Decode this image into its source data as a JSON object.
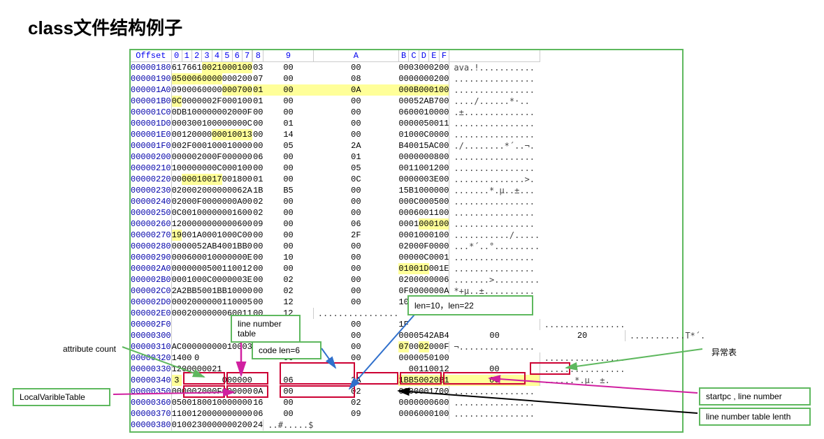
{
  "title": "class文件结构例子",
  "header_offset": "Offset",
  "hex_cols": [
    "0",
    "1",
    "2",
    "3",
    "4",
    "5",
    "6",
    "7",
    "8",
    "9",
    "A",
    "B",
    "C",
    "D",
    "E",
    "F"
  ],
  "rows": [
    {
      "o": "00000180",
      "h": [
        "61",
        "76",
        "61",
        "00",
        "21",
        "00",
        "01",
        "00",
        "",
        "03",
        "00",
        "00",
        "00",
        "03",
        "00",
        "02",
        "00"
      ],
      "hl": [
        3,
        4,
        5,
        6,
        7
      ],
      "a": "ava.!..........."
    },
    {
      "o": "00000190",
      "h": [
        "05",
        "00",
        "06",
        "00",
        "00",
        "00",
        "02",
        "00",
        "",
        "07",
        "00",
        "08",
        "00",
        "00",
        "00",
        "02",
        "00"
      ],
      "hl": [
        0,
        1,
        2,
        3,
        4
      ],
      "a": "................"
    },
    {
      "o": "000001A0",
      "h": [
        "09",
        "00",
        "06",
        "00",
        "00",
        "00",
        "07",
        "00",
        "",
        "01",
        "00",
        "0A",
        "00",
        "0B",
        "00",
        "01",
        "00"
      ],
      "hl": [
        5,
        6,
        7,
        9,
        10,
        11,
        12,
        13,
        14,
        15,
        16
      ],
      "a": "................"
    },
    {
      "o": "000001B0",
      "h": [
        "0C",
        "00",
        "00",
        "00",
        "2F",
        "00",
        "01",
        "00",
        "",
        "01",
        "00",
        "00",
        "00",
        "05",
        "2A",
        "B7",
        "00"
      ],
      "hl": [
        0
      ],
      "a": "..../......*·.."
    },
    {
      "o": "000001C0",
      "h": [
        "0D",
        "B1",
        "00",
        "00",
        "00",
        "02",
        "00",
        "0F",
        "",
        "00",
        "00",
        "00",
        "06",
        "00",
        "01",
        "00",
        "00"
      ],
      "hl": [],
      "a": ".±.............."
    },
    {
      "o": "000001D0",
      "h": [
        "00",
        "03",
        "00",
        "10",
        "00",
        "00",
        "00",
        "0C",
        "",
        "00",
        "01",
        "00",
        "00",
        "00",
        "05",
        "00",
        "11"
      ],
      "hl": [],
      "a": "................"
    },
    {
      "o": "000001E0",
      "h": [
        "00",
        "12",
        "00",
        "00",
        "00",
        "01",
        "00",
        "13",
        "",
        "00",
        "14",
        "00",
        "01",
        "00",
        "0C",
        "00",
        "00"
      ],
      "hl": [
        4,
        5,
        6,
        7
      ],
      "a": "................"
    },
    {
      "o": "000001F0",
      "h": [
        "00",
        "2F",
        "00",
        "01",
        "00",
        "01",
        "00",
        "00",
        "",
        "00",
        "05",
        "2A",
        "B4",
        "00",
        "15",
        "AC",
        "00"
      ],
      "hl": [],
      "a": "./........*´..¬."
    },
    {
      "o": "00000200",
      "h": [
        "00",
        "00",
        "02",
        "00",
        "0F",
        "00",
        "00",
        "00",
        "",
        "06",
        "00",
        "01",
        "00",
        "00",
        "00",
        "08",
        "00"
      ],
      "hl": [],
      "a": "................"
    },
    {
      "o": "00000210",
      "h": [
        "10",
        "00",
        "00",
        "00",
        "0C",
        "00",
        "01",
        "00",
        "",
        "00",
        "00",
        "05",
        "00",
        "11",
        "00",
        "12",
        "00"
      ],
      "hl": [],
      "a": "................"
    },
    {
      "o": "00000220",
      "h": [
        "00",
        "00",
        "01",
        "00",
        "17",
        "00",
        "18",
        "00",
        "",
        "01",
        "00",
        "0C",
        "00",
        "00",
        "00",
        "3E",
        "00"
      ],
      "hl": [
        1,
        2,
        3,
        4
      ],
      "a": "..............>."
    },
    {
      "o": "00000230",
      "h": [
        "02",
        "00",
        "02",
        "00",
        "00",
        "00",
        "06",
        "2A",
        "",
        "1B",
        "B5",
        "00",
        "15",
        "B1",
        "00",
        "00",
        "00"
      ],
      "hl": [],
      "a": ".......*.µ..±..."
    },
    {
      "o": "00000240",
      "h": [
        "02",
        "00",
        "0F",
        "00",
        "00",
        "00",
        "0A",
        "00",
        "",
        "02",
        "00",
        "00",
        "00",
        "0C",
        "00",
        "05",
        "00"
      ],
      "hl": [],
      "a": "................"
    },
    {
      "o": "00000250",
      "h": [
        "0C",
        "00",
        "10",
        "00",
        "00",
        "00",
        "16",
        "00",
        "",
        "02",
        "00",
        "00",
        "00",
        "06",
        "00",
        "11",
        "00"
      ],
      "hl": [],
      "a": "................"
    },
    {
      "o": "00000260",
      "h": [
        "12",
        "00",
        "00",
        "00",
        "00",
        "00",
        "06",
        "00",
        "",
        "09",
        "00",
        "06",
        "00",
        "01",
        "00",
        "01",
        "00"
      ],
      "hl": [
        14,
        15,
        16
      ],
      "a": "................"
    },
    {
      "o": "00000270",
      "h": [
        "19",
        "00",
        "1A",
        "00",
        "01",
        "00",
        "0C",
        "00",
        "",
        "00",
        "00",
        "2F",
        "00",
        "01",
        "00",
        "01",
        "00"
      ],
      "hl": [
        0
      ],
      "a": ".........../....."
    },
    {
      "o": "00000280",
      "h": [
        "00",
        "00",
        "05",
        "2A",
        "B4",
        "00",
        "1B",
        "B0",
        "",
        "00",
        "00",
        "00",
        "02",
        "00",
        "0F",
        "00",
        "00"
      ],
      "hl": [],
      "a": "...*´..°........."
    },
    {
      "o": "00000290",
      "h": [
        "00",
        "06",
        "00",
        "01",
        "00",
        "00",
        "00",
        "0E",
        "",
        "00",
        "10",
        "00",
        "00",
        "00",
        "0C",
        "00",
        "01"
      ],
      "hl": [],
      "a": "................"
    },
    {
      "o": "000002A0",
      "h": [
        "00",
        "00",
        "00",
        "05",
        "00",
        "11",
        "00",
        "12",
        "",
        "00",
        "00",
        "00",
        "01",
        "00",
        "1D",
        "00",
        "1E"
      ],
      "hl": [
        12,
        13,
        14
      ],
      "a": "................"
    },
    {
      "o": "000002B0",
      "h": [
        "00",
        "01",
        "00",
        "0C",
        "00",
        "00",
        "00",
        "3E",
        "",
        "00",
        "02",
        "00",
        "02",
        "00",
        "00",
        "00",
        "06"
      ],
      "hl": [],
      "a": ".......>........."
    },
    {
      "o": "000002C0",
      "h": [
        "2A",
        "2B",
        "B5",
        "00",
        "1B",
        "B1",
        "00",
        "00",
        "",
        "00",
        "02",
        "00",
        "0F",
        "00",
        "00",
        "00",
        "0A"
      ],
      "hl": [],
      "a": "*+µ..±.........."
    },
    {
      "o": "000002D0",
      "h": [
        "00",
        "02",
        "00",
        "00",
        "00",
        "11",
        "00",
        "05",
        "",
        "00",
        "12",
        "00",
        "10",
        "00",
        "00",
        "00",
        "16"
      ],
      "hl": [],
      "a": "................"
    },
    {
      "o": "000002E0",
      "h": [
        "00",
        "02",
        "00",
        "00",
        "00",
        "06",
        "00",
        "11",
        "",
        "00",
        "12",
        "",
        "",
        "",
        "",
        "",
        ""
      ],
      "hl": [],
      "a": "................"
    },
    {
      "o": "000002F0",
      "h": [
        "",
        "",
        "",
        "",
        "",
        "",
        "",
        "",
        "",
        "00",
        "00",
        "1F",
        "",
        "",
        "",
        "",
        " "
      ],
      "hl": [],
      "a": "................"
    },
    {
      "o": "00000300",
      "h": [
        "",
        "",
        "",
        "",
        "",
        "",
        "",
        "00",
        "",
        "0C",
        "00",
        "00",
        "00",
        "54",
        "2A",
        "B4",
        "00",
        "20"
      ],
      "hl": [],
      "a": "...........T*´. "
    },
    {
      "o": "00000310",
      "h": [
        "AC",
        "00",
        "00",
        "00",
        "00",
        "01",
        "00",
        "03",
        "",
        "00",
        "05",
        "00",
        "07",
        "00",
        "02",
        "00",
        "0F"
      ],
      "hl": [
        9,
        10,
        12,
        14
      ],
      "a": "¬..............."
    },
    {
      "o": "00000320",
      "h": [
        "14",
        "00",
        "0",
        "",
        "",
        "",
        "",
        "",
        "",
        "06",
        "00",
        "00",
        "00",
        "05",
        "01",
        "00"
      ],
      "hl": [],
      "a": "................"
    },
    {
      "o": "00000330",
      "h": [
        "12",
        "00",
        "00",
        "00",
        "21",
        "",
        "",
        "",
        "",
        "",
        "",
        "",
        "00",
        "11",
        "00",
        "12",
        "00"
      ],
      "hl": [],
      "a": "................"
    },
    {
      "o": "00000340",
      "h": [
        "3",
        "",
        "",
        "",
        "",
        "00",
        "00",
        "00",
        "",
        "06",
        "2A",
        "1B",
        "B5",
        "00",
        "20",
        "B1",
        "00"
      ],
      "hl": [
        0,
        11,
        12,
        13,
        14,
        15,
        16
      ],
      "a": "......*.µ. ±."
    },
    {
      "o": "00000350",
      "h": [
        "00",
        "00",
        "02",
        "00",
        "0F",
        "00",
        "00",
        "00",
        "",
        "0A",
        "00",
        "02",
        "00",
        "00",
        "00",
        "17",
        "00"
      ],
      "hl": [],
      "a": "................"
    },
    {
      "o": "00000360",
      "h": [
        "05",
        "00",
        "18",
        "00",
        "10",
        "00",
        "00",
        "00",
        "",
        "16",
        "00",
        "02",
        "00",
        "00",
        "00",
        "06",
        "00"
      ],
      "hl": [],
      "a": "................"
    },
    {
      "o": "00000370",
      "h": [
        "11",
        "00",
        "12",
        "00",
        "00",
        "00",
        "00",
        "00",
        "",
        "06",
        "00",
        "09",
        "00",
        "06",
        "00",
        "01",
        "00"
      ],
      "hl": [],
      "a": "................"
    },
    {
      "o": "00000380",
      "h": [
        "01",
        "00",
        "23",
        "00",
        "00",
        "00",
        "02",
        "00",
        "",
        "24",
        "",
        "",
        "",
        "",
        "",
        "",
        ""
      ],
      "hl": [],
      "a": "..#.....$"
    }
  ],
  "labels": {
    "len_box": "len=10，len=22",
    "line_num_table": "line number table",
    "code_len": "code len=6",
    "attr_count": "attribute count",
    "local_var": "LocalVaribleTable",
    "exception": "异常表",
    "startpc": "startpc , line number",
    "line_len": "line number table lenth"
  },
  "colors": {
    "green": "#5eb85e",
    "red": "#cc0033",
    "magenta": "#d020a0",
    "black": "#000",
    "blue": "#3070cc"
  }
}
